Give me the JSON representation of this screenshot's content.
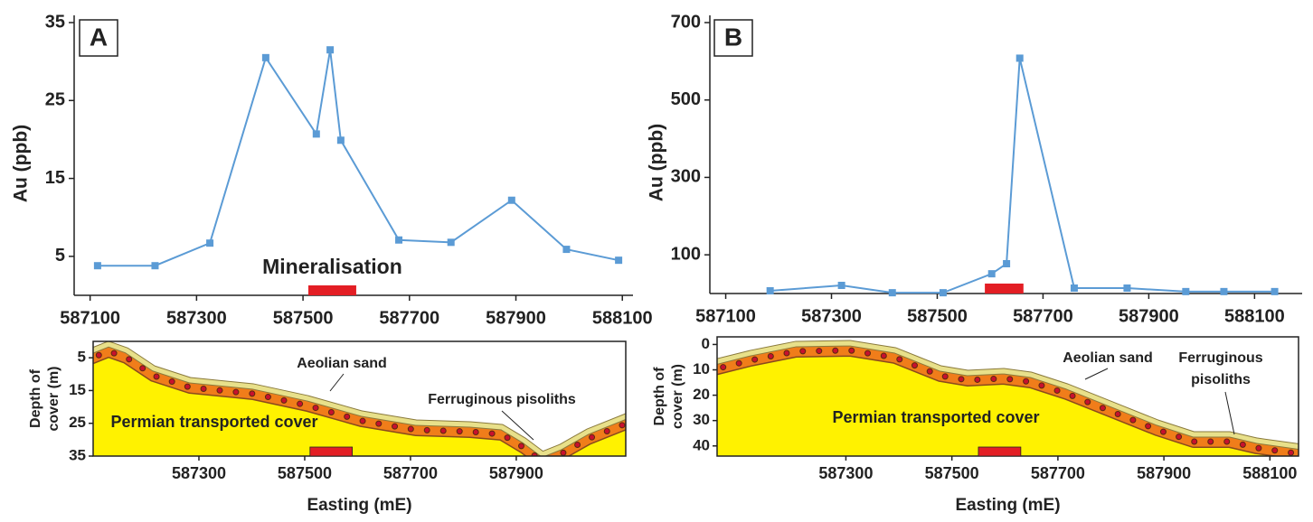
{
  "chart_data": [
    {
      "type": "line",
      "panel": "A",
      "y_label": "Au (ppb)",
      "x": [
        587114,
        587222,
        587325,
        587430,
        587525,
        587551,
        587571,
        587680,
        587778,
        587892,
        587995,
        588093
      ],
      "values": [
        3.8,
        3.8,
        6.7,
        30.5,
        20.7,
        31.5,
        19.9,
        7.1,
        6.8,
        12.2,
        5.9,
        4.5
      ],
      "color": "#5b9bd5",
      "xlim": [
        587070,
        588120
      ],
      "xticks": [
        587100,
        587300,
        587500,
        587700,
        587900,
        588100
      ],
      "ylim": [
        0,
        35
      ],
      "yticks": [
        5,
        15,
        25,
        35
      ],
      "mineralisation": {
        "label": "Mineralisation",
        "range": [
          587510,
          587600
        ],
        "color": "#e31e24"
      }
    },
    {
      "type": "line",
      "panel": "B",
      "y_label": "Au (ppb)",
      "x": [
        587184,
        587319,
        587415,
        587511,
        587603,
        587631,
        587656,
        587759,
        587859,
        587970,
        588042,
        588138
      ],
      "values": [
        7,
        21,
        2,
        2,
        51,
        77,
        608,
        14,
        14,
        5,
        5,
        5
      ],
      "color": "#5b9bd5",
      "xlim": [
        587070,
        588190
      ],
      "xticks": [
        587100,
        587300,
        587500,
        587700,
        587900,
        588100
      ],
      "ylim": [
        0,
        700
      ],
      "yticks": [
        100,
        300,
        500,
        700
      ],
      "mineralisation": {
        "range": [
          587590,
          587663
        ],
        "color": "#e31e24"
      }
    }
  ],
  "cross_sections": [
    {
      "x_label": "Easting (mE)",
      "y_label_lines": [
        "Depth of",
        "cover (m)"
      ],
      "xlim": [
        587100,
        588107
      ],
      "xticks": [
        587300,
        587500,
        587700,
        587900
      ],
      "dlim": [
        0,
        35
      ],
      "dticks": [
        5,
        15,
        25,
        35
      ],
      "labels": {
        "sand": "Aeolian sand",
        "pisoliths": [
          "Ferruginous pisoliths"
        ],
        "cover": "Permian transported cover"
      },
      "mineralisation_range": [
        587510,
        587590
      ]
    },
    {
      "x_label": "Easting (mE)",
      "y_label_lines": [
        "Depth of",
        "cover (m)"
      ],
      "xlim": [
        587057,
        588154
      ],
      "xticks": [
        587300,
        587500,
        587700,
        587900,
        588100
      ],
      "dlim": [
        -3,
        44
      ],
      "dticks": [
        0,
        10,
        20,
        30,
        40
      ],
      "labels": {
        "sand": "Aeolian sand",
        "pisoliths": [
          "Ferruginous",
          "pisoliths"
        ],
        "cover": "Permian transported cover"
      },
      "mineralisation_range": [
        587550,
        587630
      ]
    }
  ]
}
